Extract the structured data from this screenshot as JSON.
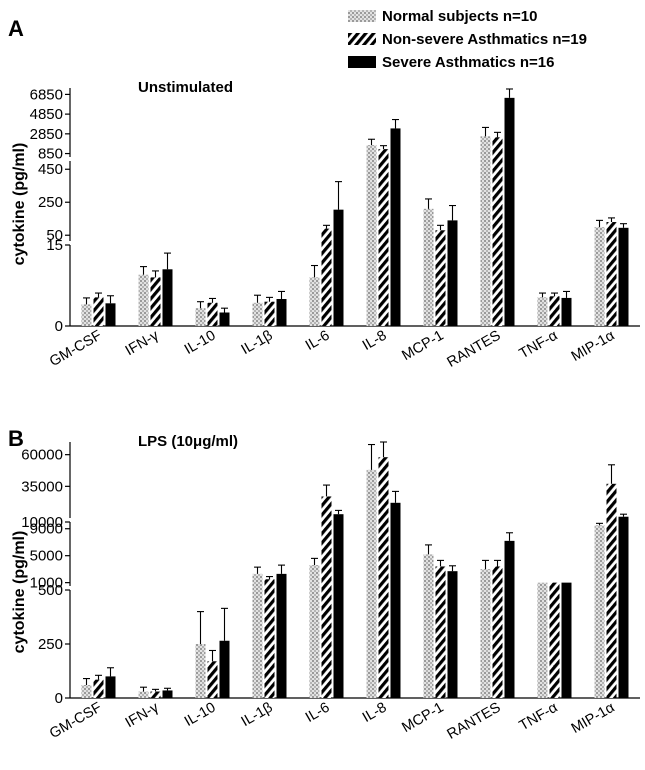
{
  "chart_data": [
    {
      "type": "bar",
      "panel_label": "A",
      "title": "Unstimulated",
      "ylabel": "cytokine (pg/ml)",
      "categories": [
        "GM-CSF",
        "IFN-γ",
        "IL-10",
        "IL-1β",
        "IL-6",
        "IL-8",
        "MCP-1",
        "RANTES",
        "TNF-α",
        "MIP-1α"
      ],
      "axis_segments": [
        {
          "ylim": [
            0,
            15
          ],
          "ticks": [
            "0",
            "15"
          ]
        },
        {
          "ylim": [
            15,
            500
          ],
          "ticks": [
            "50",
            "250",
            "450"
          ]
        },
        {
          "ylim": [
            500,
            7500
          ],
          "ticks": [
            "850",
            "2850",
            "4850",
            "6850"
          ]
        }
      ],
      "series": [
        {
          "name": "Normal subjects n=10",
          "pattern": "dotted-gray",
          "values": [
            4,
            9.5,
            3.3,
            4.3,
            9,
            1700,
            210,
            2600,
            5.3,
            100
          ],
          "errors": [
            1.2,
            1.5,
            1.2,
            1.4,
            2.2,
            600,
            60,
            900,
            0.8,
            40
          ]
        },
        {
          "name": "Non-severe Asthmatics n=19",
          "pattern": "hatched",
          "values": [
            5.3,
            9,
            4.3,
            4.5,
            90,
            1300,
            80,
            2500,
            5.5,
            130
          ],
          "errors": [
            0.8,
            1.2,
            0.8,
            0.8,
            20,
            350,
            30,
            500,
            0.6,
            25
          ]
        },
        {
          "name": "Severe Asthmatics n=16",
          "pattern": "solid-black",
          "values": [
            4.2,
            10.5,
            2.5,
            5,
            205,
            3400,
            140,
            6500,
            5.2,
            95
          ],
          "errors": [
            1.4,
            3,
            0.8,
            1.4,
            170,
            900,
            90,
            900,
            1.2,
            25
          ]
        }
      ]
    },
    {
      "type": "bar",
      "panel_label": "B",
      "title": "LPS (10μg/ml)",
      "ylabel": "cytokine (pg/ml)",
      "categories": [
        "GM-CSF",
        "IFN-γ",
        "IL-10",
        "IL-1β",
        "IL-6",
        "IL-8",
        "MCP-1",
        "RANTES",
        "TNF-α",
        "MIP-1α"
      ],
      "axis_segments": [
        {
          "ylim": [
            0,
            500
          ],
          "ticks": [
            "0",
            "250",
            "500"
          ]
        },
        {
          "ylim": [
            500,
            10000
          ],
          "ticks": [
            "1000",
            "5000",
            "9000"
          ]
        },
        {
          "ylim": [
            10000,
            70000
          ],
          "ticks": [
            "10000",
            "35000",
            "60000"
          ]
        }
      ],
      "series": [
        {
          "name": "Normal subjects n=10",
          "pattern": "dotted-gray",
          "values": [
            60,
            30,
            250,
            2300,
            3600,
            48000,
            5200,
            3000,
            1000,
            9500
          ],
          "errors": [
            30,
            20,
            150,
            1000,
            1000,
            20000,
            1400,
            1300,
            0,
            300
          ]
        },
        {
          "name": "Non-severe Asthmatics n=19",
          "pattern": "hatched",
          "values": [
            85,
            30,
            170,
            1500,
            27000,
            58000,
            3400,
            3400,
            1000,
            37000
          ],
          "errors": [
            20,
            10,
            50,
            400,
            9000,
            16000,
            900,
            900,
            0,
            15000
          ]
        },
        {
          "name": "Severe Asthmatics n=16",
          "pattern": "solid-black",
          "values": [
            100,
            35,
            265,
            2300,
            13000,
            22000,
            2700,
            7200,
            1000,
            11000
          ],
          "errors": [
            40,
            10,
            150,
            1300,
            3000,
            9000,
            800,
            1200,
            0,
            2000
          ]
        }
      ]
    }
  ]
}
